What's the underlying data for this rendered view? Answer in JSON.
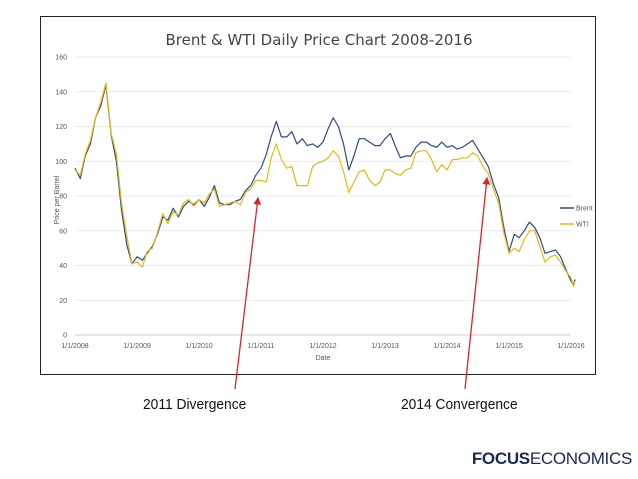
{
  "chart_data": {
    "type": "line",
    "title": "Brent & WTI Daily Price Chart 2008-2016",
    "xlabel": "Date",
    "ylabel": "Price per Barrel",
    "ylim": [
      0,
      160
    ],
    "yticks": [
      0,
      20,
      40,
      60,
      80,
      100,
      120,
      140,
      160
    ],
    "xlim": [
      "2008-01-01",
      "2016-01-01"
    ],
    "xticks": [
      "1/1/2008",
      "1/1/2009",
      "1/1/2010",
      "1/1/2011",
      "1/1/2012",
      "1/1/2013",
      "1/1/2014",
      "1/1/2015",
      "1/1/2016"
    ],
    "grid": "horizontal",
    "legend": "right",
    "series": [
      {
        "name": "Brent",
        "color": "#2e4a87",
        "points": [
          [
            "2008-01-01",
            96
          ],
          [
            "2008-02-01",
            90
          ],
          [
            "2008-03-01",
            103
          ],
          [
            "2008-04-01",
            110
          ],
          [
            "2008-05-01",
            125
          ],
          [
            "2008-06-01",
            132
          ],
          [
            "2008-07-01",
            144
          ],
          [
            "2008-08-01",
            115
          ],
          [
            "2008-09-01",
            100
          ],
          [
            "2008-10-01",
            72
          ],
          [
            "2008-11-01",
            52
          ],
          [
            "2008-12-01",
            41
          ],
          [
            "2009-01-01",
            45
          ],
          [
            "2009-02-01",
            43
          ],
          [
            "2009-03-01",
            47
          ],
          [
            "2009-04-01",
            51
          ],
          [
            "2009-05-01",
            58
          ],
          [
            "2009-06-01",
            68
          ],
          [
            "2009-07-01",
            66
          ],
          [
            "2009-08-01",
            73
          ],
          [
            "2009-09-01",
            68
          ],
          [
            "2009-10-01",
            74
          ],
          [
            "2009-11-01",
            77
          ],
          [
            "2009-12-01",
            75
          ],
          [
            "2010-01-01",
            78
          ],
          [
            "2010-02-01",
            74
          ],
          [
            "2010-03-01",
            79
          ],
          [
            "2010-04-01",
            86
          ],
          [
            "2010-05-01",
            76
          ],
          [
            "2010-06-01",
            75
          ],
          [
            "2010-07-01",
            75
          ],
          [
            "2010-08-01",
            77
          ],
          [
            "2010-09-01",
            78
          ],
          [
            "2010-10-01",
            83
          ],
          [
            "2010-11-01",
            86
          ],
          [
            "2010-12-01",
            92
          ],
          [
            "2011-01-01",
            96
          ],
          [
            "2011-02-01",
            104
          ],
          [
            "2011-03-01",
            114
          ],
          [
            "2011-04-01",
            123
          ],
          [
            "2011-05-01",
            114
          ],
          [
            "2011-06-01",
            114
          ],
          [
            "2011-07-01",
            117
          ],
          [
            "2011-08-01",
            110
          ],
          [
            "2011-09-01",
            113
          ],
          [
            "2011-10-01",
            109
          ],
          [
            "2011-11-01",
            110
          ],
          [
            "2011-12-01",
            108
          ],
          [
            "2012-01-01",
            111
          ],
          [
            "2012-02-01",
            119
          ],
          [
            "2012-03-01",
            125
          ],
          [
            "2012-04-01",
            120
          ],
          [
            "2012-05-01",
            110
          ],
          [
            "2012-06-01",
            95
          ],
          [
            "2012-07-01",
            103
          ],
          [
            "2012-08-01",
            113
          ],
          [
            "2012-09-01",
            113
          ],
          [
            "2012-10-01",
            111
          ],
          [
            "2012-11-01",
            109
          ],
          [
            "2012-12-01",
            109
          ],
          [
            "2013-01-01",
            113
          ],
          [
            "2013-02-01",
            116
          ],
          [
            "2013-03-01",
            109
          ],
          [
            "2013-04-01",
            102
          ],
          [
            "2013-05-01",
            103
          ],
          [
            "2013-06-01",
            103
          ],
          [
            "2013-07-01",
            108
          ],
          [
            "2013-08-01",
            111
          ],
          [
            "2013-09-01",
            111
          ],
          [
            "2013-10-01",
            109
          ],
          [
            "2013-11-01",
            108
          ],
          [
            "2013-12-01",
            111
          ],
          [
            "2014-01-01",
            108
          ],
          [
            "2014-02-01",
            109
          ],
          [
            "2014-03-01",
            107
          ],
          [
            "2014-04-01",
            108
          ],
          [
            "2014-05-01",
            110
          ],
          [
            "2014-06-01",
            112
          ],
          [
            "2014-07-01",
            107
          ],
          [
            "2014-08-01",
            102
          ],
          [
            "2014-09-01",
            97
          ],
          [
            "2014-10-01",
            87
          ],
          [
            "2014-11-01",
            79
          ],
          [
            "2014-12-01",
            62
          ],
          [
            "2015-01-01",
            48
          ],
          [
            "2015-02-01",
            58
          ],
          [
            "2015-03-01",
            56
          ],
          [
            "2015-04-01",
            60
          ],
          [
            "2015-05-01",
            65
          ],
          [
            "2015-06-01",
            62
          ],
          [
            "2015-07-01",
            56
          ],
          [
            "2015-08-01",
            47
          ],
          [
            "2015-09-01",
            48
          ],
          [
            "2015-10-01",
            49
          ],
          [
            "2015-11-01",
            45
          ],
          [
            "2015-12-01",
            38
          ],
          [
            "2016-01-01",
            31
          ],
          [
            "2016-01-15",
            29
          ],
          [
            "2016-01-25",
            32
          ]
        ]
      },
      {
        "name": "WTI",
        "color": "#e8b80e",
        "points": [
          [
            "2008-01-01",
            95
          ],
          [
            "2008-02-01",
            92
          ],
          [
            "2008-03-01",
            104
          ],
          [
            "2008-04-01",
            112
          ],
          [
            "2008-05-01",
            125
          ],
          [
            "2008-06-01",
            134
          ],
          [
            "2008-07-01",
            145
          ],
          [
            "2008-08-01",
            116
          ],
          [
            "2008-09-01",
            104
          ],
          [
            "2008-10-01",
            76
          ],
          [
            "2008-11-01",
            57
          ],
          [
            "2008-12-01",
            41
          ],
          [
            "2009-01-01",
            42
          ],
          [
            "2009-02-01",
            39
          ],
          [
            "2009-03-01",
            48
          ],
          [
            "2009-04-01",
            50
          ],
          [
            "2009-05-01",
            59
          ],
          [
            "2009-06-01",
            70
          ],
          [
            "2009-07-01",
            64
          ],
          [
            "2009-08-01",
            71
          ],
          [
            "2009-09-01",
            69
          ],
          [
            "2009-10-01",
            76
          ],
          [
            "2009-11-01",
            78
          ],
          [
            "2009-12-01",
            74
          ],
          [
            "2010-01-01",
            78
          ],
          [
            "2010-02-01",
            76
          ],
          [
            "2010-03-01",
            81
          ],
          [
            "2010-04-01",
            84
          ],
          [
            "2010-05-01",
            74
          ],
          [
            "2010-06-01",
            75
          ],
          [
            "2010-07-01",
            76
          ],
          [
            "2010-08-01",
            77
          ],
          [
            "2010-09-01",
            75
          ],
          [
            "2010-10-01",
            82
          ],
          [
            "2010-11-01",
            84
          ],
          [
            "2010-12-01",
            89
          ],
          [
            "2011-01-01",
            89
          ],
          [
            "2011-02-01",
            88
          ],
          [
            "2011-03-01",
            102
          ],
          [
            "2011-04-01",
            110
          ],
          [
            "2011-05-01",
            101
          ],
          [
            "2011-06-01",
            96
          ],
          [
            "2011-07-01",
            97
          ],
          [
            "2011-08-01",
            86
          ],
          [
            "2011-09-01",
            86
          ],
          [
            "2011-10-01",
            86
          ],
          [
            "2011-11-01",
            97
          ],
          [
            "2011-12-01",
            99
          ],
          [
            "2012-01-01",
            100
          ],
          [
            "2012-02-01",
            102
          ],
          [
            "2012-03-01",
            106
          ],
          [
            "2012-04-01",
            103
          ],
          [
            "2012-05-01",
            94
          ],
          [
            "2012-06-01",
            82
          ],
          [
            "2012-07-01",
            88
          ],
          [
            "2012-08-01",
            94
          ],
          [
            "2012-09-01",
            95
          ],
          [
            "2012-10-01",
            89
          ],
          [
            "2012-11-01",
            86
          ],
          [
            "2012-12-01",
            88
          ],
          [
            "2013-01-01",
            95
          ],
          [
            "2013-02-01",
            95
          ],
          [
            "2013-03-01",
            93
          ],
          [
            "2013-04-01",
            92
          ],
          [
            "2013-05-01",
            95
          ],
          [
            "2013-06-01",
            96
          ],
          [
            "2013-07-01",
            105
          ],
          [
            "2013-08-01",
            106
          ],
          [
            "2013-09-01",
            106
          ],
          [
            "2013-10-01",
            101
          ],
          [
            "2013-11-01",
            94
          ],
          [
            "2013-12-01",
            98
          ],
          [
            "2014-01-01",
            95
          ],
          [
            "2014-02-01",
            101
          ],
          [
            "2014-03-01",
            101
          ],
          [
            "2014-04-01",
            102
          ],
          [
            "2014-05-01",
            102
          ],
          [
            "2014-06-01",
            105
          ],
          [
            "2014-07-01",
            103
          ],
          [
            "2014-08-01",
            97
          ],
          [
            "2014-09-01",
            93
          ],
          [
            "2014-10-01",
            84
          ],
          [
            "2014-11-01",
            76
          ],
          [
            "2014-12-01",
            59
          ],
          [
            "2015-01-01",
            47
          ],
          [
            "2015-02-01",
            50
          ],
          [
            "2015-03-01",
            48
          ],
          [
            "2015-04-01",
            55
          ],
          [
            "2015-05-01",
            60
          ],
          [
            "2015-06-01",
            60
          ],
          [
            "2015-07-01",
            51
          ],
          [
            "2015-08-01",
            42
          ],
          [
            "2015-09-01",
            45
          ],
          [
            "2015-10-01",
            46
          ],
          [
            "2015-11-01",
            42
          ],
          [
            "2015-12-01",
            37
          ],
          [
            "2016-01-01",
            33
          ],
          [
            "2016-01-15",
            28
          ],
          [
            "2016-01-25",
            31
          ]
        ]
      }
    ]
  },
  "annotations": {
    "divergence": "2011 Divergence",
    "convergence": "2014 Convergence",
    "arrow_color": "#d9232e"
  },
  "brand": {
    "part1": "FOCUS",
    "part2": "ECONOMICS"
  }
}
